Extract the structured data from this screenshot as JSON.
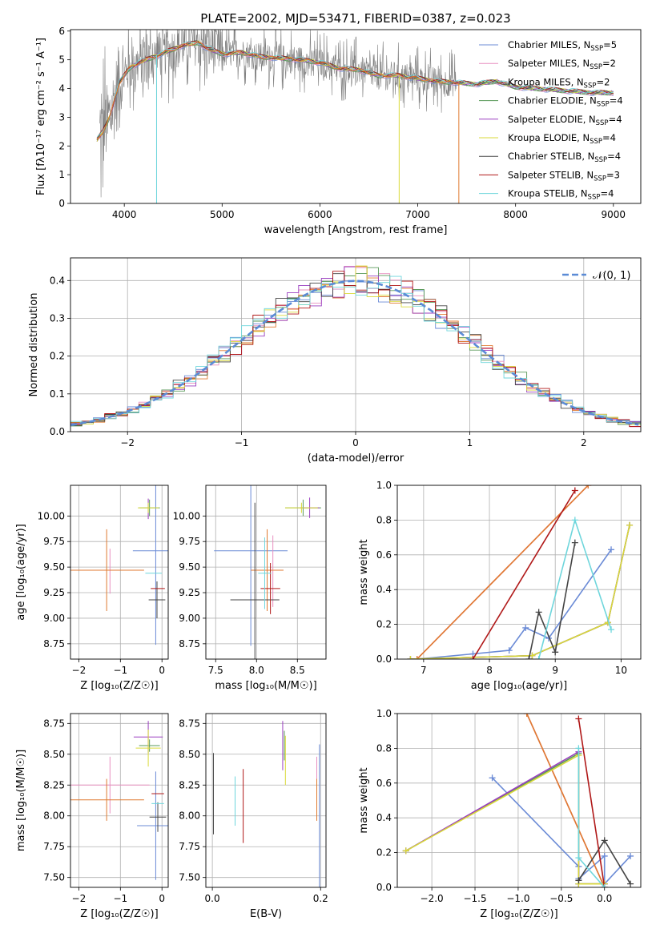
{
  "colors": {
    "grid": "#b0b0b0",
    "gauss": "#5b8bd6",
    "series": [
      "#6b8bd6",
      "#e88fc0",
      "#e07a30",
      "#5a9a5a",
      "#9a3fc0",
      "#d9d93a",
      "#444444",
      "#b01818",
      "#6fd6dc"
    ]
  },
  "chart_data": [
    {
      "id": "spectrum",
      "type": "line",
      "title": "PLATE=2002, MJD=53471, FIBERID=0387, z=0.023",
      "xlabel": "wavelength [Angstrom, rest frame]",
      "ylabel": "Flux [fλ10⁻¹⁷ erg cm⁻² s⁻¹ A⁻¹]",
      "xlim": [
        3450,
        9280
      ],
      "ylim": [
        0,
        6.05
      ],
      "xticks": [
        4000,
        5000,
        6000,
        7000,
        8000,
        9000
      ],
      "yticks": [
        0,
        1,
        2,
        3,
        4,
        5,
        6
      ],
      "grid": false,
      "legend_position": "top-right",
      "legend": [
        {
          "label": "Chabrier MILES, N",
          "sub": "SSP",
          "tail": "=5"
        },
        {
          "label": "Salpeter MILES, N",
          "sub": "SSP",
          "tail": "=2"
        },
        {
          "label": "Kroupa MILES, N",
          "sub": "SSP",
          "tail": "=2"
        },
        {
          "label": "Chabrier ELODIE, N",
          "sub": "SSP",
          "tail": "=4"
        },
        {
          "label": "Salpeter ELODIE, N",
          "sub": "SSP",
          "tail": "=4"
        },
        {
          "label": "Kroupa ELODIE, N",
          "sub": "SSP",
          "tail": "=4"
        },
        {
          "label": "Chabrier STELIB, N",
          "sub": "SSP",
          "tail": "=4"
        },
        {
          "label": "Salpeter STELIB, N",
          "sub": "SSP",
          "tail": "=3"
        },
        {
          "label": "Kroupa STELIB, N",
          "sub": "SSP",
          "tail": "=4"
        }
      ],
      "legend_colors": [
        "#6b8bd6",
        "#e88fc0",
        "#5a9a5a",
        "#5a9a5a",
        "#9a3fc0",
        "#d9d93a",
        "#444444",
        "#b01818",
        "#6fd6dc"
      ],
      "observed_color": "#808080",
      "observed_range": [
        3750,
        9000
      ],
      "model_continuum": {
        "x": [
          3720,
          3780,
          3850,
          3950,
          4050,
          4150,
          4300,
          4450,
          4600,
          4750,
          4850,
          5000,
          5200,
          5400,
          5600,
          5800,
          6000,
          6200,
          6400,
          6600,
          6800,
          7000,
          7200,
          7400,
          7600,
          7800,
          8000,
          8200,
          8400,
          8600,
          8800,
          9000
        ],
        "y": [
          2.2,
          2.5,
          3.0,
          4.2,
          4.7,
          4.9,
          5.1,
          5.3,
          5.5,
          5.6,
          5.4,
          5.2,
          5.25,
          5.1,
          5.05,
          5.0,
          4.9,
          4.7,
          4.65,
          4.45,
          4.45,
          4.35,
          4.25,
          4.2,
          4.15,
          4.25,
          4.05,
          4.0,
          3.95,
          3.9,
          3.85,
          3.85
        ]
      }
    },
    {
      "id": "residuals",
      "type": "line",
      "xlabel": "(data-model)/error",
      "ylabel": "Normed distribution",
      "xlim": [
        -2.5,
        2.5
      ],
      "ylim": [
        0,
        0.46
      ],
      "xticks": [
        -2,
        -1,
        0,
        1,
        2
      ],
      "yticks": [
        0.0,
        0.1,
        0.2,
        0.3,
        0.4
      ],
      "grid": true,
      "legend_position": "top-right",
      "gauss_label": "𝒩(0, 1)",
      "gauss_mu": 0,
      "gauss_sigma": 1,
      "bin_width": 0.1
    },
    {
      "id": "age_vs_Z",
      "type": "scatter",
      "xlabel": "Z [log₁₀(Z/Z☉)]",
      "ylabel": "age [log₁₀(age/yr)]",
      "xlim": [
        -2.2,
        0.15
      ],
      "ylim": [
        8.6,
        10.3
      ],
      "xticks": [
        -2,
        -1,
        0
      ],
      "yticks": [
        8.75,
        9.0,
        9.25,
        9.5,
        9.75,
        10.0
      ],
      "grid": true,
      "points": [
        {
          "c": 0,
          "x": -0.15,
          "xerr": 0.55,
          "y": 9.66,
          "yerr": 0.92
        },
        {
          "c": 1,
          "x": -1.25,
          "xerr": 0.0,
          "y": 9.46,
          "yerr": 0.22
        },
        {
          "c": 2,
          "x": -1.33,
          "xerr": 0.9,
          "y": 9.47,
          "yerr": 0.4
        },
        {
          "c": 3,
          "x": -0.3,
          "xerr": 0.25,
          "y": 10.08,
          "yerr": 0.08
        },
        {
          "c": 4,
          "x": -0.33,
          "xerr": 0.0,
          "y": 10.07,
          "yerr": 0.1
        },
        {
          "c": 5,
          "x": -0.33,
          "xerr": 0.25,
          "y": 10.08,
          "yerr": 0.05
        },
        {
          "c": 6,
          "x": -0.12,
          "xerr": 0.2,
          "y": 9.18,
          "yerr": 0.18
        },
        {
          "c": 7,
          "x": -0.1,
          "xerr": 0.17,
          "y": 9.29,
          "yerr": 0.0
        },
        {
          "c": 8,
          "x": -0.2,
          "xerr": 0.2,
          "y": 9.44,
          "yerr": 0.0
        }
      ]
    },
    {
      "id": "age_vs_mass",
      "type": "scatter",
      "xlabel": "mass [log₁₀(M/M☉)]",
      "ylabel": "",
      "xlim": [
        7.38,
        8.85
      ],
      "ylim": [
        8.6,
        10.3
      ],
      "xticks": [
        7.5,
        8.0,
        8.5
      ],
      "yticks": [
        8.75,
        9.0,
        9.25,
        9.5,
        9.75,
        10.0
      ],
      "grid": true,
      "points": [
        {
          "c": 0,
          "x": 7.93,
          "xerr": 0.45,
          "y": 9.66,
          "yerr": 0.93
        },
        {
          "c": 1,
          "x": 8.2,
          "xerr": 0.0,
          "y": 9.46,
          "yerr": 0.35
        },
        {
          "c": 2,
          "x": 8.13,
          "xerr": 0.2,
          "y": 9.47,
          "yerr": 0.4
        },
        {
          "c": 3,
          "x": 8.57,
          "xerr": 0.22,
          "y": 10.08,
          "yerr": 0.08
        },
        {
          "c": 4,
          "x": 8.65,
          "xerr": 0.12,
          "y": 10.08,
          "yerr": 0.1
        },
        {
          "c": 5,
          "x": 8.55,
          "xerr": 0.2,
          "y": 10.08,
          "yerr": 0.05
        },
        {
          "c": 6,
          "x": 7.98,
          "xerr": 0.3,
          "y": 9.18,
          "yerr": 0.95
        },
        {
          "c": 7,
          "x": 8.17,
          "xerr": 0.12,
          "y": 9.29,
          "yerr": 0.25
        },
        {
          "c": 8,
          "x": 8.1,
          "xerr": 0.08,
          "y": 9.44,
          "yerr": 0.35
        }
      ]
    },
    {
      "id": "weight_vs_age",
      "type": "line",
      "xlabel": "age [log₁₀(age/yr)]",
      "ylabel": "mass weight",
      "xlim": [
        6.6,
        10.3
      ],
      "ylim": [
        0,
        1
      ],
      "xticks": [
        7,
        8,
        9,
        10
      ],
      "yticks": [
        0.0,
        0.2,
        0.4,
        0.6,
        0.8,
        1.0
      ],
      "grid": true,
      "series": [
        {
          "c": 0,
          "x": [
            6.9,
            7.75,
            8.3,
            8.55,
            8.9,
            9.85
          ],
          "y": [
            0.0,
            0.03,
            0.05,
            0.18,
            0.12,
            0.63
          ]
        },
        {
          "c": 1,
          "x": [
            6.9,
            9.5
          ],
          "y": [
            0.0,
            1.0
          ]
        },
        {
          "c": 2,
          "x": [
            6.9,
            9.5
          ],
          "y": [
            0.0,
            1.0
          ]
        },
        {
          "c": 3,
          "x": [
            6.8,
            8.65,
            9.8,
            10.13
          ],
          "y": [
            0.0,
            0.02,
            0.21,
            0.77
          ]
        },
        {
          "c": 4,
          "x": [
            6.8,
            8.65,
            9.8,
            10.13
          ],
          "y": [
            0.0,
            0.02,
            0.21,
            0.77
          ]
        },
        {
          "c": 5,
          "x": [
            6.8,
            8.65,
            9.8,
            10.13
          ],
          "y": [
            0.0,
            0.02,
            0.21,
            0.77
          ]
        },
        {
          "c": 6,
          "x": [
            8.6,
            8.75,
            9.0,
            9.3
          ],
          "y": [
            0.0,
            0.27,
            0.04,
            0.67
          ]
        },
        {
          "c": 7,
          "x": [
            7.75,
            9.3
          ],
          "y": [
            0.0,
            0.97
          ]
        },
        {
          "c": 8,
          "x": [
            8.75,
            9.3,
            9.85
          ],
          "y": [
            0.0,
            0.8,
            0.17
          ]
        }
      ]
    },
    {
      "id": "mass_vs_Z",
      "type": "scatter",
      "xlabel": "Z [log₁₀(Z/Z☉)]",
      "ylabel": "mass [log₁₀(M/M☉)]",
      "xlim": [
        -2.2,
        0.15
      ],
      "ylim": [
        7.42,
        8.83
      ],
      "xticks": [
        -2,
        -1,
        0
      ],
      "yticks": [
        7.5,
        7.75,
        8.0,
        8.25,
        8.5,
        8.75
      ],
      "grid": true,
      "points": [
        {
          "c": 0,
          "x": -0.15,
          "xerr": 0.45,
          "y": 7.92,
          "yerr": 0.44
        },
        {
          "c": 1,
          "x": -1.25,
          "xerr": 0.95,
          "y": 8.25,
          "yerr": 0.23
        },
        {
          "c": 2,
          "x": -1.33,
          "xerr": 0.9,
          "y": 8.13,
          "yerr": 0.17
        },
        {
          "c": 3,
          "x": -0.3,
          "xerr": 0.25,
          "y": 8.57,
          "yerr": 0.05
        },
        {
          "c": 4,
          "x": -0.33,
          "xerr": 0.35,
          "y": 8.64,
          "yerr": 0.13
        },
        {
          "c": 5,
          "x": -0.33,
          "xerr": 0.3,
          "y": 8.55,
          "yerr": 0.15
        },
        {
          "c": 6,
          "x": -0.1,
          "xerr": 0.2,
          "y": 7.99,
          "yerr": 0.12
        },
        {
          "c": 7,
          "x": -0.1,
          "xerr": 0.15,
          "y": 8.18,
          "yerr": 0.0
        },
        {
          "c": 8,
          "x": -0.1,
          "xerr": 0.15,
          "y": 8.1,
          "yerr": 0.0
        }
      ]
    },
    {
      "id": "mass_vs_EBV",
      "type": "scatter",
      "xlabel": "E(B-V)",
      "ylabel": "",
      "xlim": [
        -0.012,
        0.21
      ],
      "ylim": [
        7.42,
        8.83
      ],
      "xticks": [
        0.0,
        0.2
      ],
      "yticks": [
        7.5,
        7.75,
        8.0,
        8.25,
        8.5,
        8.75
      ],
      "grid": true,
      "points": [
        {
          "c": 0,
          "x": 0.198,
          "xerr": 0,
          "y": 8.0,
          "yerr": 0.58
        },
        {
          "c": 1,
          "x": 0.193,
          "xerr": 0,
          "y": 8.25,
          "yerr": 0.23
        },
        {
          "c": 2,
          "x": 0.193,
          "xerr": 0,
          "y": 8.13,
          "yerr": 0.17
        },
        {
          "c": 3,
          "x": 0.133,
          "xerr": 0,
          "y": 8.57,
          "yerr": 0.12
        },
        {
          "c": 4,
          "x": 0.13,
          "xerr": 0,
          "y": 8.57,
          "yerr": 0.2
        },
        {
          "c": 5,
          "x": 0.135,
          "xerr": 0,
          "y": 8.45,
          "yerr": 0.2
        },
        {
          "c": 6,
          "x": 0.002,
          "xerr": 0,
          "y": 8.18,
          "yerr": 0.33
        },
        {
          "c": 7,
          "x": 0.057,
          "xerr": 0,
          "y": 8.08,
          "yerr": 0.3
        },
        {
          "c": 8,
          "x": 0.042,
          "xerr": 0,
          "y": 8.12,
          "yerr": 0.2
        }
      ]
    },
    {
      "id": "weight_vs_Z",
      "type": "line",
      "xlabel": "Z [log₁₀(Z/Z☉)]",
      "ylabel": "mass weight",
      "xlim": [
        -2.4,
        0.42
      ],
      "ylim": [
        0,
        1
      ],
      "xticks": [
        -2.0,
        -1.5,
        -1.0,
        -0.5,
        0.0
      ],
      "yticks": [
        0.0,
        0.2,
        0.4,
        0.6,
        0.8,
        1.0
      ],
      "grid": true,
      "series": [
        {
          "c": 0,
          "x": [
            -1.3,
            -0.3,
            -0.3,
            0.0,
            0.0,
            0.3
          ],
          "y": [
            0.63,
            0.12,
            0.05,
            0.18,
            0.02,
            0.18
          ]
        },
        {
          "c": 1,
          "x": [
            -0.9,
            0.0
          ],
          "y": [
            1.0,
            0.0
          ]
        },
        {
          "c": 2,
          "x": [
            -0.9,
            0.0
          ],
          "y": [
            1.0,
            0.0
          ]
        },
        {
          "c": 3,
          "x": [
            -2.3,
            -0.3,
            -0.3,
            0.0
          ],
          "y": [
            0.21,
            0.77,
            0.02,
            0.02
          ]
        },
        {
          "c": 4,
          "x": [
            -2.3,
            -0.3,
            -0.3,
            0.0
          ],
          "y": [
            0.21,
            0.78,
            0.02,
            0.02
          ]
        },
        {
          "c": 5,
          "x": [
            -2.3,
            -0.3,
            -0.3,
            0.0
          ],
          "y": [
            0.21,
            0.76,
            0.02,
            0.02
          ]
        },
        {
          "c": 6,
          "x": [
            -0.3,
            0.0,
            0.3
          ],
          "y": [
            0.04,
            0.27,
            0.02
          ]
        },
        {
          "c": 7,
          "x": [
            -0.3,
            0.0
          ],
          "y": [
            0.97,
            0.0
          ]
        },
        {
          "c": 8,
          "x": [
            -0.3,
            -0.3,
            0.0
          ],
          "y": [
            0.8,
            0.17,
            0.0
          ]
        }
      ]
    }
  ]
}
